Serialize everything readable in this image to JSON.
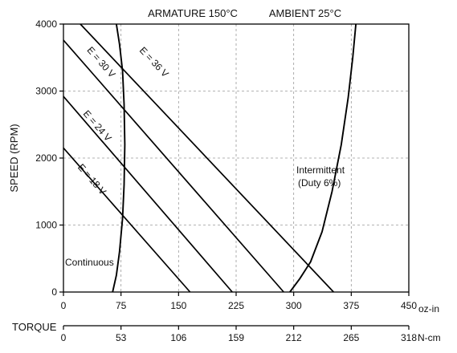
{
  "chart_data": {
    "type": "line",
    "title_left": "ARMATURE 150°C",
    "title_right": "AMBIENT 25°C",
    "ylabel": "SPEED (RPM)",
    "xlabel": "TORQUE",
    "x_unit_primary": "oz-in",
    "x_unit_secondary": "N-cm",
    "xlim": [
      0,
      450
    ],
    "ylim": [
      0,
      4000
    ],
    "x_ticks": [
      "0",
      "75",
      "150",
      "225",
      "300",
      "375",
      "450"
    ],
    "x_ticks_secondary": [
      "0",
      "53",
      "106",
      "159",
      "212",
      "265",
      "318"
    ],
    "y_ticks": [
      "0",
      "1000",
      "2000",
      "3000",
      "4000"
    ],
    "grid": true,
    "series": [
      {
        "name": "E = 18 V",
        "x": [
          0,
          165
        ],
        "y": [
          2150,
          0
        ]
      },
      {
        "name": "E = 24 V",
        "x": [
          0,
          220
        ],
        "y": [
          2920,
          0
        ]
      },
      {
        "name": "E = 30 V",
        "x": [
          0,
          287
        ],
        "y": [
          3760,
          0
        ]
      },
      {
        "name": "E = 36 V",
        "x": [
          22,
          352
        ],
        "y": [
          4000,
          0
        ]
      }
    ],
    "boundaries": [
      {
        "name": "Continuous",
        "x": [
          69,
          73,
          77,
          79,
          80,
          79,
          77,
          73,
          69,
          64
        ],
        "y": [
          4000,
          3700,
          3300,
          2800,
          2200,
          1600,
          1100,
          600,
          250,
          0
        ]
      },
      {
        "name": "Intermittent (Duty 6%)",
        "x": [
          295,
          308,
          322,
          337,
          350,
          362,
          371,
          377,
          381
        ],
        "y": [
          0,
          200,
          450,
          900,
          1500,
          2200,
          2900,
          3500,
          4000
        ]
      }
    ],
    "region_labels": {
      "continuous": "Continuous",
      "intermittent_line1": "Intermittent",
      "intermittent_line2": "(Duty 6%)"
    }
  }
}
